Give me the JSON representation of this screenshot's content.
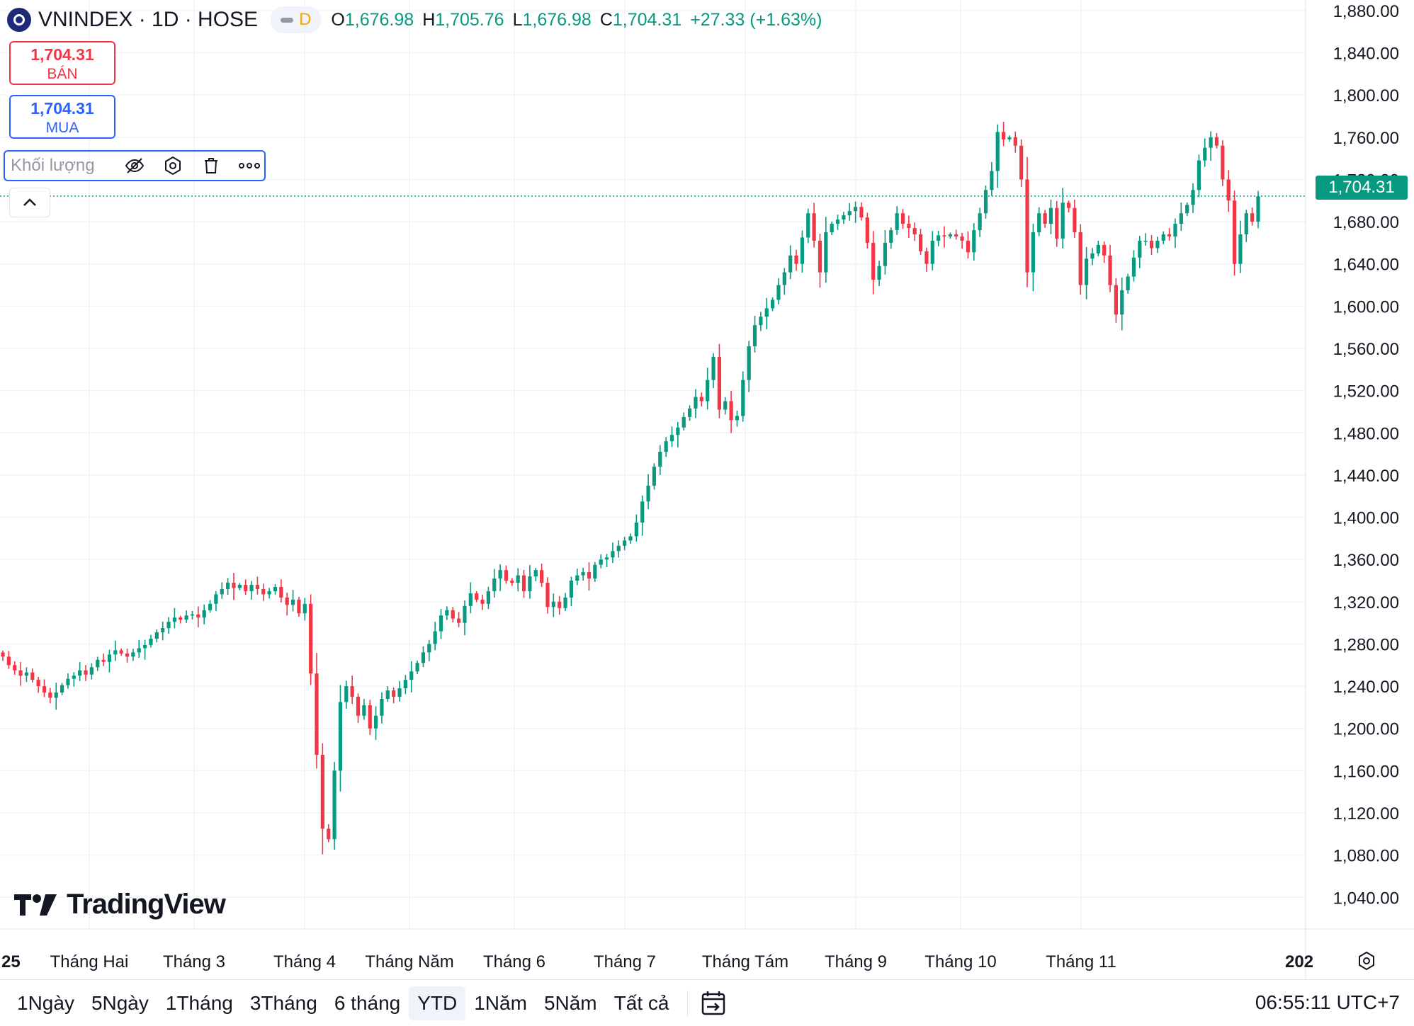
{
  "header": {
    "symbol": "VNINDEX · 1D · HOSE",
    "interval_badge": "D",
    "o_label": "O",
    "o_value": "1,676.98",
    "h_label": "H",
    "h_value": "1,705.76",
    "l_label": "L",
    "l_value": "1,676.98",
    "c_label": "C",
    "c_value": "1,704.31",
    "change": "+27.33 (+1.63%)"
  },
  "trade": {
    "sell_price": "1,704.31",
    "sell_label": "BÁN",
    "buy_price": "1,704.31",
    "buy_label": "MUA"
  },
  "volume_indicator": {
    "label": "Khối lượng"
  },
  "last_price_tag": "1,704.31",
  "brand": "TradingView",
  "bottom": {
    "ranges": [
      "1Ngày",
      "5Ngày",
      "1Tháng",
      "3Tháng",
      "6 tháng",
      "YTD",
      "1Năm",
      "5Năm",
      "Tất cả"
    ],
    "active_range": "YTD",
    "time": "06:55:11 UTC+7"
  },
  "colors": {
    "up": "#089981",
    "down": "#f23645",
    "accent": "#2962ff"
  },
  "chart_data": {
    "type": "candlestick",
    "y_ticks": [
      "1,880.00",
      "1,840.00",
      "1,800.00",
      "1,760.00",
      "1,720.00",
      "1,680.00",
      "1,640.00",
      "1,600.00",
      "1,560.00",
      "1,520.00",
      "1,480.00",
      "1,440.00",
      "1,400.00",
      "1,360.00",
      "1,320.00",
      "1,280.00",
      "1,240.00",
      "1,200.00",
      "1,160.00",
      "1,120.00",
      "1,080.00",
      "1,040.00"
    ],
    "ylim": [
      1010,
      1890
    ],
    "x_labels": [
      "25",
      "Tháng Hai",
      "Tháng 3",
      "Tháng 4",
      "Tháng Năm",
      "Tháng 6",
      "Tháng 7",
      "Tháng Tám",
      "Tháng 9",
      "Tháng 10",
      "Tháng 11",
      "202"
    ],
    "last_price": 1704.31,
    "closes": [
      1268,
      1260,
      1255,
      1250,
      1253,
      1246,
      1240,
      1234,
      1229,
      1234,
      1241,
      1247,
      1250,
      1255,
      1251,
      1258,
      1265,
      1263,
      1270,
      1274,
      1271,
      1268,
      1272,
      1276,
      1279,
      1285,
      1291,
      1295,
      1301,
      1305,
      1303,
      1307,
      1308,
      1305,
      1312,
      1318,
      1327,
      1332,
      1338,
      1333,
      1336,
      1330,
      1336,
      1332,
      1327,
      1330,
      1334,
      1324,
      1317,
      1322,
      1309,
      1318,
      1252,
      1175,
      1105,
      1095,
      1160,
      1225,
      1240,
      1230,
      1212,
      1222,
      1200,
      1212,
      1228,
      1236,
      1230,
      1238,
      1246,
      1254,
      1262,
      1272,
      1280,
      1292,
      1307,
      1312,
      1304,
      1300,
      1316,
      1328,
      1322,
      1318,
      1330,
      1342,
      1350,
      1340,
      1338,
      1345,
      1330,
      1344,
      1350,
      1338,
      1315,
      1320,
      1314,
      1324,
      1340,
      1345,
      1348,
      1342,
      1355,
      1360,
      1362,
      1368,
      1373,
      1378,
      1382,
      1395,
      1415,
      1430,
      1448,
      1462,
      1472,
      1478,
      1485,
      1495,
      1503,
      1514,
      1510,
      1530,
      1552,
      1502,
      1510,
      1492,
      1496,
      1530,
      1562,
      1582,
      1590,
      1598,
      1606,
      1620,
      1632,
      1648,
      1640,
      1665,
      1688,
      1662,
      1632,
      1670,
      1678,
      1682,
      1686,
      1690,
      1694,
      1684,
      1660,
      1625,
      1638,
      1660,
      1672,
      1688,
      1678,
      1674,
      1668,
      1652,
      1640,
      1662,
      1667,
      1666,
      1668,
      1666,
      1662,
      1651,
      1672,
      1688,
      1710,
      1728,
      1765,
      1758,
      1760,
      1752,
      1720,
      1632,
      1670,
      1688,
      1678,
      1693,
      1664,
      1698,
      1693,
      1670,
      1620,
      1645,
      1650,
      1658,
      1648,
      1620,
      1592,
      1615,
      1628,
      1646,
      1662,
      1662,
      1655,
      1662,
      1668,
      1666,
      1678,
      1688,
      1696,
      1710,
      1738,
      1750,
      1760,
      1752,
      1720,
      1700,
      1640,
      1668,
      1688,
      1680,
      1704
    ]
  }
}
